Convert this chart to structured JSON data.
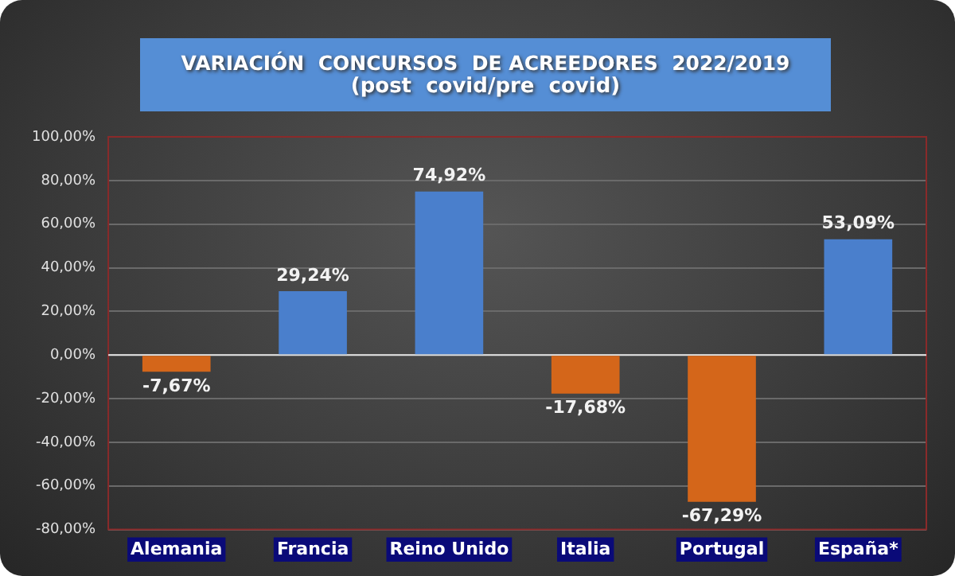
{
  "chart_data": {
    "type": "bar",
    "title": "VARIACIÓN  CONCURSOS  DE ACREEDORES  2022/2019",
    "subtitle": "(post  covid/pre  covid)",
    "categories": [
      "Alemania",
      "Francia",
      "Reino Unido",
      "Italia",
      "Portugal",
      "España*"
    ],
    "values": [
      -7.67,
      29.24,
      74.92,
      -17.68,
      -67.29,
      53.09
    ],
    "colors": [
      "#d4661a",
      "#4a7fcc",
      "#4a7fcc",
      "#d4661a",
      "#d4661a",
      "#4a7fcc"
    ],
    "value_labels": [
      "-7,67%",
      "29,24%",
      "74,92%",
      "-17,68%",
      "-67,29%",
      "53,09%"
    ],
    "ylim": [
      -80,
      100
    ],
    "yticks": [
      {
        "value": -80,
        "label": "-80,00%"
      },
      {
        "value": -60,
        "label": "-60,00%"
      },
      {
        "value": -40,
        "label": "-40,00%"
      },
      {
        "value": -20,
        "label": "-20,00%"
      },
      {
        "value": 0,
        "label": "0,00%"
      },
      {
        "value": 20,
        "label": "20,00%"
      },
      {
        "value": 40,
        "label": "40,00%"
      },
      {
        "value": 60,
        "label": "60,00%"
      },
      {
        "value": 80,
        "label": "80,00%"
      },
      {
        "value": 100,
        "label": "100,00%"
      }
    ],
    "grid": "y",
    "legend": false
  }
}
